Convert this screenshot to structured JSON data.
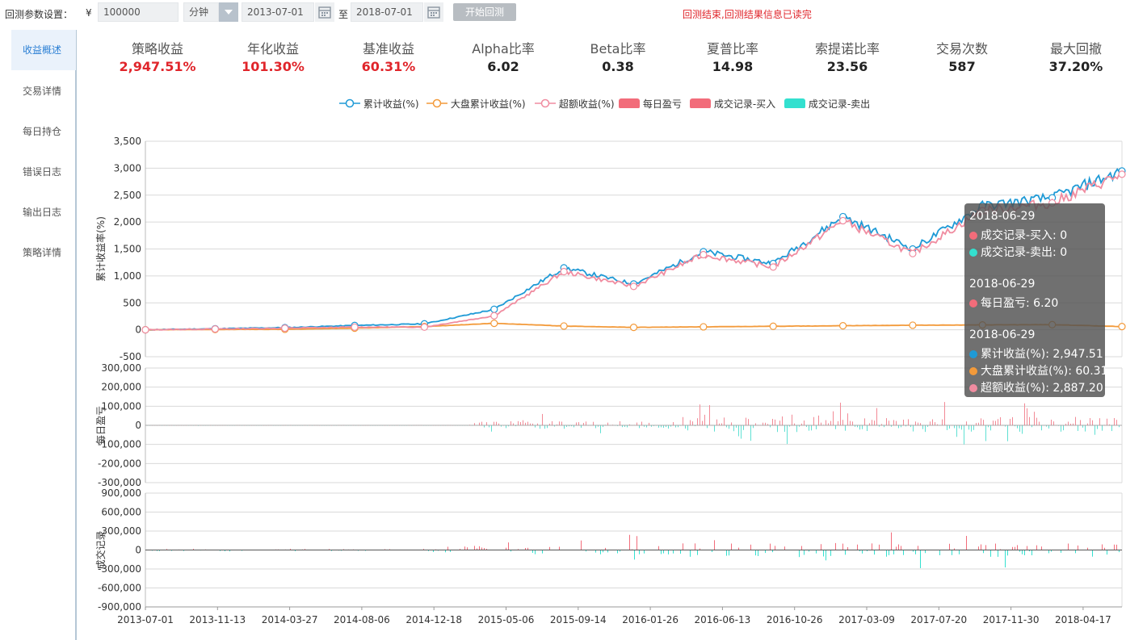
{
  "params": {
    "label": "回测参数设置：",
    "currency": "¥",
    "capital": "100000",
    "frequency": "分钟",
    "start_date": "2013-07-01",
    "to_label": "至",
    "end_date": "2018-07-01",
    "start_button": "开始回测"
  },
  "status_message": "回测结束,回测结果信息已读完",
  "sidebar": {
    "items": [
      {
        "label": "收益概述",
        "active": true
      },
      {
        "label": "交易详情"
      },
      {
        "label": "每日持仓"
      },
      {
        "label": "错误日志"
      },
      {
        "label": "输出日志"
      },
      {
        "label": "策略详情"
      }
    ]
  },
  "metrics": [
    {
      "name": "策略收益",
      "value": "2,947.51%",
      "highlight": true
    },
    {
      "name": "年化收益",
      "value": "101.30%",
      "highlight": true
    },
    {
      "name": "基准收益",
      "value": "60.31%",
      "highlight": true
    },
    {
      "name": "Alpha比率",
      "value": "6.02"
    },
    {
      "name": "Beta比率",
      "value": "0.38"
    },
    {
      "name": "夏普比率",
      "value": "14.98"
    },
    {
      "name": "索提诺比率",
      "value": "23.56"
    },
    {
      "name": "交易次数",
      "value": "587"
    },
    {
      "name": "最大回撤",
      "value": "37.20%"
    }
  ],
  "legend": [
    {
      "label": "累计收益(%)",
      "color": "#1f9ad6",
      "kind": "line"
    },
    {
      "label": "大盘累计收益(%)",
      "color": "#f39a3a",
      "kind": "line"
    },
    {
      "label": "超额收益(%)",
      "color": "#f08ca0",
      "kind": "line"
    },
    {
      "label": "每日盈亏",
      "color": "#f26c7a",
      "kind": "box"
    },
    {
      "label": "成交记录-买入",
      "color": "#f26c7a",
      "kind": "box"
    },
    {
      "label": "成交记录-卖出",
      "color": "#33e0cf",
      "kind": "box"
    }
  ],
  "tooltip": {
    "groups": [
      {
        "date": "2018-06-29",
        "rows": [
          {
            "label": "成交记录-买入: 0",
            "color": "#f26c7a"
          },
          {
            "label": "成交记录-卖出: 0",
            "color": "#33e0cf"
          }
        ]
      },
      {
        "date": "2018-06-29",
        "rows": [
          {
            "label": "每日盈亏: 6.20",
            "color": "#f26c7a"
          }
        ]
      },
      {
        "date": "2018-06-29",
        "rows": [
          {
            "label": "累计收益(%): 2,947.51",
            "color": "#1f9ad6"
          },
          {
            "label": "大盘累计收益(%): 60.31",
            "color": "#f39a3a"
          },
          {
            "label": "超额收益(%): 2,887.20",
            "color": "#f08ca0"
          }
        ]
      }
    ]
  },
  "chart_data": [
    {
      "type": "line",
      "ylabel": "累计收益率(%)",
      "ylim": [
        -500,
        3500
      ],
      "yticks": [
        "3,500",
        "3,000",
        "2,500",
        "2,000",
        "1,500",
        "1,000",
        "500",
        "0",
        "-500"
      ],
      "x": [
        "2013-07-01",
        "2013-11-13",
        "2014-03-27",
        "2014-08-06",
        "2014-12-18",
        "2015-05-06",
        "2015-09-14",
        "2016-01-26",
        "2016-06-13",
        "2016-10-26",
        "2017-03-09",
        "2017-07-20",
        "2017-11-30",
        "2018-04-17",
        "2018-06-29"
      ],
      "series": [
        {
          "name": "累计收益(%)",
          "color": "#1f9ad6",
          "values": [
            0,
            20,
            40,
            80,
            110,
            380,
            1150,
            850,
            1450,
            1230,
            2100,
            1500,
            2300,
            2450,
            2947.51
          ]
        },
        {
          "name": "大盘累计收益(%)",
          "color": "#f39a3a",
          "values": [
            0,
            5,
            10,
            30,
            60,
            120,
            70,
            45,
            55,
            65,
            75,
            85,
            90,
            95,
            60.31
          ]
        },
        {
          "name": "超额收益(%)",
          "color": "#f08ca0",
          "values": [
            0,
            15,
            30,
            50,
            50,
            260,
            1080,
            805,
            1395,
            1165,
            2025,
            1415,
            2210,
            2355,
            2887.2
          ]
        }
      ],
      "grid": true
    },
    {
      "type": "bar",
      "ylabel": "每日盈亏",
      "ylim": [
        -300000,
        300000
      ],
      "yticks": [
        "300,000",
        "200,000",
        "100,000",
        "0",
        "-100,000",
        "-200,000",
        "-300,000"
      ],
      "series": [
        {
          "name": "每日盈亏",
          "color_pos": "#f28a96",
          "color_neg": "#5fe0d3"
        }
      ]
    },
    {
      "type": "bar",
      "ylabel": "成交记录",
      "ylim": [
        -900000,
        900000
      ],
      "yticks": [
        "900,000",
        "600,000",
        "300,000",
        "0",
        "-300,000",
        "-600,000",
        "-900,000"
      ],
      "series": [
        {
          "name": "成交记录-买入",
          "color": "#f26c7a"
        },
        {
          "name": "成交记录-卖出",
          "color": "#33e0cf"
        }
      ]
    }
  ]
}
